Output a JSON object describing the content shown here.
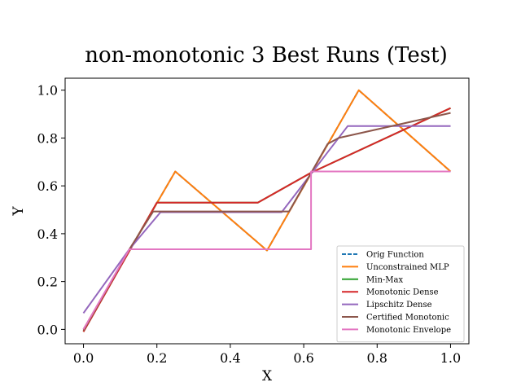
{
  "chart_data": {
    "type": "line",
    "title": "non-monotonic 3 Best Runs (Test)",
    "xlabel": "X",
    "ylabel": "Y",
    "xlim": [
      -0.05,
      1.05
    ],
    "ylim": [
      -0.06,
      1.05
    ],
    "xticks": [
      "0.0",
      "0.2",
      "0.4",
      "0.6",
      "0.8",
      "1.0"
    ],
    "yticks": [
      "0.0",
      "0.2",
      "0.4",
      "0.6",
      "0.8",
      "1.0"
    ],
    "grid": false,
    "legend_position": "lower-right",
    "series": [
      {
        "name": "Orig Function",
        "color": "#1f77b4",
        "dashed": true,
        "x": [
          0.0,
          0.25,
          0.5,
          0.75,
          1.0
        ],
        "y": [
          0.0,
          0.66,
          0.33,
          1.0,
          0.66
        ]
      },
      {
        "name": "Unconstrained MLP",
        "color": "#ff7f0e",
        "dashed": false,
        "x": [
          0.0,
          0.25,
          0.5,
          0.75,
          1.0
        ],
        "y": [
          0.0,
          0.66,
          0.33,
          1.0,
          0.66
        ]
      },
      {
        "name": "Min-Max",
        "color": "#2ca02c",
        "dashed": false,
        "x": [
          0.0,
          0.2,
          0.475,
          0.62,
          1.0
        ],
        "y": [
          -0.01,
          0.53,
          0.53,
          0.655,
          0.925
        ]
      },
      {
        "name": "Monotonic Dense",
        "color": "#d62728",
        "dashed": false,
        "x": [
          0.0,
          0.2,
          0.475,
          0.62,
          1.0
        ],
        "y": [
          -0.01,
          0.53,
          0.53,
          0.655,
          0.925
        ]
      },
      {
        "name": "Lipschitz Dense",
        "color": "#9467bd",
        "dashed": false,
        "x": [
          0.0,
          0.125,
          0.21,
          0.54,
          0.72,
          1.0
        ],
        "y": [
          0.068,
          0.335,
          0.49,
          0.49,
          0.85,
          0.85
        ]
      },
      {
        "name": "Certified Monotonic",
        "color": "#8c564b",
        "dashed": false,
        "x": [
          0.0,
          0.125,
          0.19,
          0.56,
          0.665,
          0.695,
          1.0
        ],
        "y": [
          -0.005,
          0.335,
          0.493,
          0.493,
          0.775,
          0.8,
          0.905
        ]
      },
      {
        "name": "Monotonic Envelope",
        "color": "#e377c2",
        "dashed": false,
        "x": [
          0.0,
          0.125,
          0.62,
          0.62,
          1.0
        ],
        "y": [
          0.0,
          0.335,
          0.335,
          0.66,
          0.66
        ]
      }
    ]
  }
}
